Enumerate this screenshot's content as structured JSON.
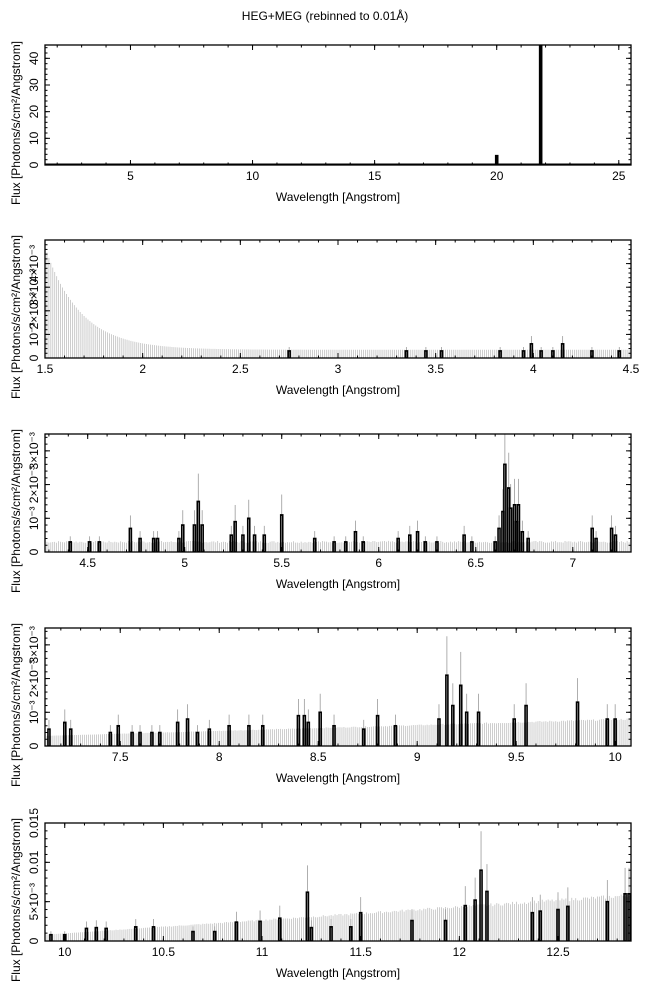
{
  "chart_data": {
    "title": "HEG+MEG (rebinned to 0.01Å)",
    "type": "bar",
    "panels": [
      {
        "xlabel": "Wavelength [Angstrom]",
        "ylabel": "Flux [Photons/s/cm²/Angstrom]",
        "xlim": [
          1.5,
          25.5
        ],
        "ylim": [
          0,
          45
        ],
        "xticks": [
          5,
          10,
          15,
          20,
          25
        ],
        "xtick_labels": [
          "5",
          "10",
          "15",
          "20",
          "25"
        ],
        "yticks": [
          0,
          10,
          20,
          30,
          40
        ],
        "ytick_labels": [
          "0",
          "10",
          "20",
          "30",
          "40"
        ],
        "baseline": 0.2,
        "lines": [
          {
            "x": 20.0,
            "y": 3.5
          },
          {
            "x": 21.8,
            "y": 45
          }
        ]
      },
      {
        "xlabel": "Wavelength [Angstrom]",
        "ylabel": "Flux [Photons/s/cm²/Angstrom]",
        "xlim": [
          1.5,
          4.5
        ],
        "ylim": [
          0,
          0.005
        ],
        "xticks": [
          1.5,
          2,
          2.5,
          3,
          3.5,
          4,
          4.5
        ],
        "xtick_labels": [
          "1.5",
          "2",
          "2.5",
          "3",
          "3.5",
          "4",
          "4.5"
        ],
        "yticks": [
          0,
          0.001,
          0.002,
          0.003,
          0.004
        ],
        "ytick_labels": [
          "0",
          "10⁻³",
          "2×10⁻³",
          "3×10⁻³",
          "4×10⁻³"
        ],
        "error_model": {
          "type": "decay",
          "start": 0.0047,
          "floor": 0.00035,
          "scale": 0.18
        },
        "lines": [
          {
            "x": 2.75,
            "y": 0.0003
          },
          {
            "x": 3.35,
            "y": 0.0003
          },
          {
            "x": 3.45,
            "y": 0.0003
          },
          {
            "x": 3.53,
            "y": 0.0003
          },
          {
            "x": 3.83,
            "y": 0.0003
          },
          {
            "x": 3.95,
            "y": 0.0003
          },
          {
            "x": 3.99,
            "y": 0.0006
          },
          {
            "x": 4.04,
            "y": 0.0003
          },
          {
            "x": 4.1,
            "y": 0.0003
          },
          {
            "x": 4.15,
            "y": 0.0006
          },
          {
            "x": 4.3,
            "y": 0.0003
          },
          {
            "x": 4.44,
            "y": 0.0003
          }
        ]
      },
      {
        "xlabel": "Wavelength [Angstrom]",
        "ylabel": "Flux [Photons/s/cm²/Angstrom]",
        "xlim": [
          4.28,
          7.3
        ],
        "ylim": [
          0,
          0.0035
        ],
        "xticks": [
          4.5,
          5,
          5.5,
          6,
          6.5,
          7
        ],
        "xtick_labels": [
          "4.5",
          "5",
          "5.5",
          "6",
          "6.5",
          "7"
        ],
        "yticks": [
          0,
          0.001,
          0.002,
          0.003
        ],
        "ytick_labels": [
          "0",
          "10⁻³",
          "2×10⁻³",
          "3×10⁻³"
        ],
        "error_model": {
          "type": "flat",
          "level": 0.0003
        },
        "lines": [
          {
            "x": 4.41,
            "y": 0.0003
          },
          {
            "x": 4.51,
            "y": 0.0003
          },
          {
            "x": 4.56,
            "y": 0.0003
          },
          {
            "x": 4.72,
            "y": 0.0007
          },
          {
            "x": 4.77,
            "y": 0.0004
          },
          {
            "x": 4.84,
            "y": 0.0004
          },
          {
            "x": 4.86,
            "y": 0.0004
          },
          {
            "x": 4.97,
            "y": 0.0004
          },
          {
            "x": 4.99,
            "y": 0.0008
          },
          {
            "x": 5.05,
            "y": 0.0008
          },
          {
            "x": 5.07,
            "y": 0.0015
          },
          {
            "x": 5.09,
            "y": 0.0008
          },
          {
            "x": 5.24,
            "y": 0.0005
          },
          {
            "x": 5.26,
            "y": 0.0009
          },
          {
            "x": 5.3,
            "y": 0.0005
          },
          {
            "x": 5.33,
            "y": 0.001
          },
          {
            "x": 5.36,
            "y": 0.0005
          },
          {
            "x": 5.41,
            "y": 0.0005
          },
          {
            "x": 5.5,
            "y": 0.0011
          },
          {
            "x": 5.67,
            "y": 0.0004
          },
          {
            "x": 5.77,
            "y": 0.0003
          },
          {
            "x": 5.83,
            "y": 0.0003
          },
          {
            "x": 5.88,
            "y": 0.0006
          },
          {
            "x": 5.92,
            "y": 0.0003
          },
          {
            "x": 6.1,
            "y": 0.0004
          },
          {
            "x": 6.16,
            "y": 0.0005
          },
          {
            "x": 6.2,
            "y": 0.0006
          },
          {
            "x": 6.24,
            "y": 0.0003
          },
          {
            "x": 6.3,
            "y": 0.0003
          },
          {
            "x": 6.44,
            "y": 0.0005
          },
          {
            "x": 6.48,
            "y": 0.0003
          },
          {
            "x": 6.6,
            "y": 0.0003
          },
          {
            "x": 6.62,
            "y": 0.0007
          },
          {
            "x": 6.64,
            "y": 0.0012
          },
          {
            "x": 6.65,
            "y": 0.0026
          },
          {
            "x": 6.67,
            "y": 0.0019
          },
          {
            "x": 6.68,
            "y": 0.0013
          },
          {
            "x": 6.7,
            "y": 0.0014
          },
          {
            "x": 6.71,
            "y": 0.0009
          },
          {
            "x": 6.72,
            "y": 0.0014
          },
          {
            "x": 6.74,
            "y": 0.0006
          },
          {
            "x": 6.77,
            "y": 0.0004
          },
          {
            "x": 7.1,
            "y": 0.0007
          },
          {
            "x": 7.12,
            "y": 0.0004
          },
          {
            "x": 7.2,
            "y": 0.0007
          },
          {
            "x": 7.22,
            "y": 0.0005
          }
        ]
      },
      {
        "xlabel": "Wavelength [Angstrom]",
        "ylabel": "Flux [Photons/s/cm²/Angstrom]",
        "xlim": [
          7.12,
          10.08
        ],
        "ylim": [
          0,
          0.0035
        ],
        "xticks": [
          7.5,
          8,
          8.5,
          9,
          9.5,
          10
        ],
        "xtick_labels": [
          "7.5",
          "8",
          "8.5",
          "9",
          "9.5",
          "10"
        ],
        "yticks": [
          0,
          0.001,
          0.002,
          0.003
        ],
        "ytick_labels": [
          "0",
          "10⁻³",
          "2×10⁻³",
          "3×10⁻³"
        ],
        "error_model": {
          "type": "rising",
          "start": 0.0003,
          "end": 0.0008
        },
        "lines": [
          {
            "x": 7.14,
            "y": 0.0005
          },
          {
            "x": 7.22,
            "y": 0.0007
          },
          {
            "x": 7.25,
            "y": 0.0005
          },
          {
            "x": 7.45,
            "y": 0.0004
          },
          {
            "x": 7.49,
            "y": 0.0006
          },
          {
            "x": 7.56,
            "y": 0.0004
          },
          {
            "x": 7.6,
            "y": 0.0004
          },
          {
            "x": 7.66,
            "y": 0.0004
          },
          {
            "x": 7.7,
            "y": 0.0004
          },
          {
            "x": 7.79,
            "y": 0.0007
          },
          {
            "x": 7.84,
            "y": 0.0008
          },
          {
            "x": 7.89,
            "y": 0.0004
          },
          {
            "x": 7.95,
            "y": 0.0005
          },
          {
            "x": 8.05,
            "y": 0.0006
          },
          {
            "x": 8.15,
            "y": 0.0006
          },
          {
            "x": 8.22,
            "y": 0.0006
          },
          {
            "x": 8.4,
            "y": 0.0009
          },
          {
            "x": 8.43,
            "y": 0.0009
          },
          {
            "x": 8.45,
            "y": 0.0007
          },
          {
            "x": 8.51,
            "y": 0.001
          },
          {
            "x": 8.58,
            "y": 0.0006
          },
          {
            "x": 8.73,
            "y": 0.0005
          },
          {
            "x": 8.8,
            "y": 0.0009
          },
          {
            "x": 8.89,
            "y": 0.0006
          },
          {
            "x": 9.11,
            "y": 0.0008
          },
          {
            "x": 9.15,
            "y": 0.0021
          },
          {
            "x": 9.18,
            "y": 0.0012
          },
          {
            "x": 9.22,
            "y": 0.0018
          },
          {
            "x": 9.25,
            "y": 0.001
          },
          {
            "x": 9.31,
            "y": 0.001
          },
          {
            "x": 9.49,
            "y": 0.0008
          },
          {
            "x": 9.55,
            "y": 0.0012
          },
          {
            "x": 9.81,
            "y": 0.0013
          },
          {
            "x": 9.96,
            "y": 0.0008
          },
          {
            "x": 10.0,
            "y": 0.0008
          }
        ]
      },
      {
        "xlabel": "Wavelength [Angstrom]",
        "ylabel": "Flux [Photons/s/cm²/Angstrom]",
        "xlim": [
          9.9,
          12.87
        ],
        "ylim": [
          0,
          0.015
        ],
        "xticks": [
          10,
          10.5,
          11,
          11.5,
          12,
          12.5
        ],
        "xtick_labels": [
          "10",
          "10.5",
          "11",
          "11.5",
          "12",
          "12.5"
        ],
        "yticks": [
          0,
          0.005,
          0.01,
          0.015
        ],
        "ytick_labels": [
          "0",
          "5×10⁻³",
          "0.01",
          "0.015"
        ],
        "error_model": {
          "type": "rising",
          "start": 0.0008,
          "end": 0.0058
        },
        "lines": [
          {
            "x": 9.93,
            "y": 0.0008
          },
          {
            "x": 10.0,
            "y": 0.0008
          },
          {
            "x": 10.11,
            "y": 0.0016
          },
          {
            "x": 10.16,
            "y": 0.0017
          },
          {
            "x": 10.21,
            "y": 0.0016
          },
          {
            "x": 10.36,
            "y": 0.0018
          },
          {
            "x": 10.45,
            "y": 0.0018
          },
          {
            "x": 10.65,
            "y": 0.0012
          },
          {
            "x": 10.76,
            "y": 0.0012
          },
          {
            "x": 10.87,
            "y": 0.0024
          },
          {
            "x": 10.99,
            "y": 0.0025
          },
          {
            "x": 11.09,
            "y": 0.0029
          },
          {
            "x": 11.23,
            "y": 0.0062
          },
          {
            "x": 11.25,
            "y": 0.0017
          },
          {
            "x": 11.35,
            "y": 0.0018
          },
          {
            "x": 11.45,
            "y": 0.0018
          },
          {
            "x": 11.5,
            "y": 0.0036
          },
          {
            "x": 11.76,
            "y": 0.0026
          },
          {
            "x": 11.93,
            "y": 0.0026
          },
          {
            "x": 12.03,
            "y": 0.0045
          },
          {
            "x": 12.08,
            "y": 0.0052
          },
          {
            "x": 12.11,
            "y": 0.009
          },
          {
            "x": 12.14,
            "y": 0.0063
          },
          {
            "x": 12.37,
            "y": 0.0036
          },
          {
            "x": 12.41,
            "y": 0.0038
          },
          {
            "x": 12.5,
            "y": 0.004
          },
          {
            "x": 12.55,
            "y": 0.0044
          },
          {
            "x": 12.75,
            "y": 0.005
          },
          {
            "x": 12.84,
            "y": 0.006
          },
          {
            "x": 12.86,
            "y": 0.006
          }
        ]
      }
    ]
  }
}
